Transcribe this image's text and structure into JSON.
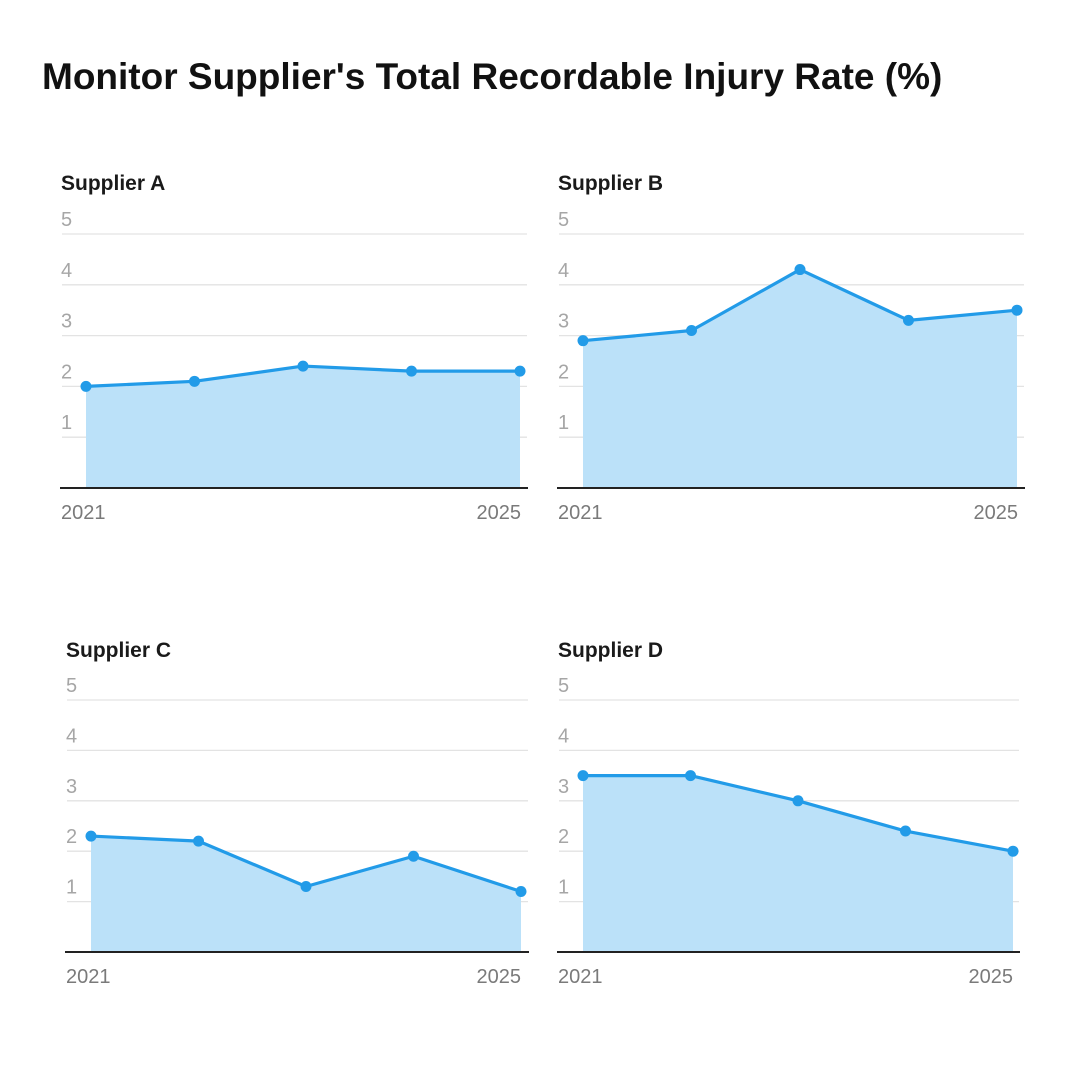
{
  "title": "Monitor Supplier's Total Recordable Injury Rate (%)",
  "chart_data": [
    {
      "type": "area",
      "title": "Supplier A",
      "x": [
        2021,
        2022,
        2023,
        2024,
        2025
      ],
      "values": [
        2.0,
        2.1,
        2.4,
        2.3,
        2.3
      ],
      "ylim": [
        0,
        5
      ],
      "yticks": [
        1,
        2,
        3,
        4,
        5
      ],
      "xtick_labels": [
        "2021",
        "2025"
      ],
      "color": "#229be8",
      "fill": "#bbe1f9"
    },
    {
      "type": "area",
      "title": "Supplier B",
      "x": [
        2021,
        2022,
        2023,
        2024,
        2025
      ],
      "values": [
        2.9,
        3.1,
        4.3,
        3.3,
        3.5
      ],
      "ylim": [
        0,
        5
      ],
      "yticks": [
        1,
        2,
        3,
        4,
        5
      ],
      "xtick_labels": [
        "2021",
        "2025"
      ],
      "color": "#229be8",
      "fill": "#bbe1f9"
    },
    {
      "type": "area",
      "title": "Supplier C",
      "x": [
        2021,
        2022,
        2023,
        2024,
        2025
      ],
      "values": [
        2.3,
        2.2,
        1.3,
        1.9,
        1.2
      ],
      "ylim": [
        0,
        5
      ],
      "yticks": [
        1,
        2,
        3,
        4,
        5
      ],
      "xtick_labels": [
        "2021",
        "2025"
      ],
      "color": "#229be8",
      "fill": "#bbe1f9"
    },
    {
      "type": "area",
      "title": "Supplier D",
      "x": [
        2021,
        2022,
        2023,
        2024,
        2025
      ],
      "values": [
        3.5,
        3.5,
        3.0,
        2.4,
        2.0
      ],
      "ylim": [
        0,
        5
      ],
      "yticks": [
        1,
        2,
        3,
        4,
        5
      ],
      "xtick_labels": [
        "2021",
        "2025"
      ],
      "color": "#229be8",
      "fill": "#bbe1f9"
    }
  ]
}
